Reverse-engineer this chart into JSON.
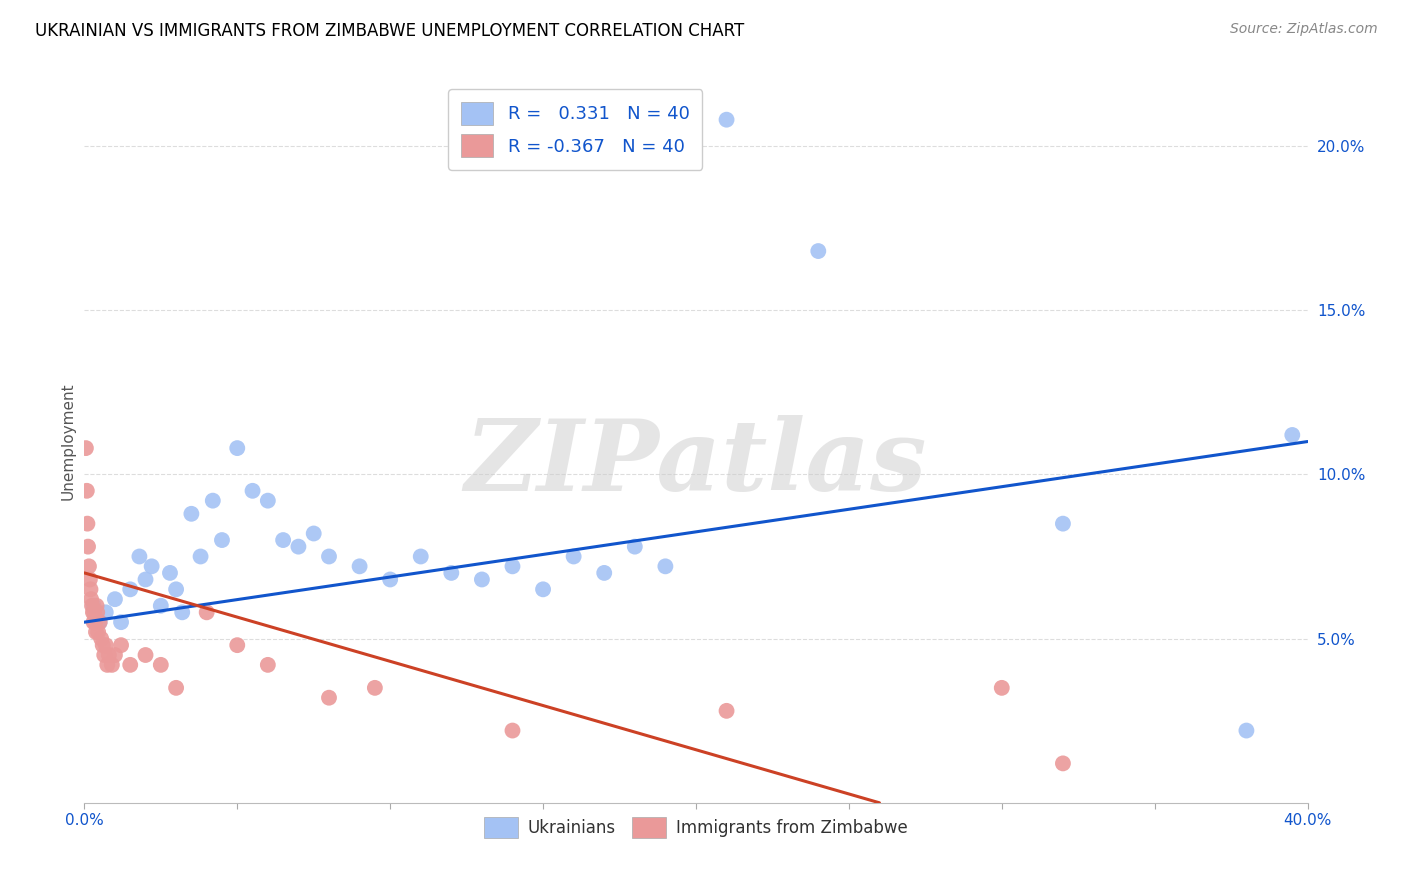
{
  "title": "UKRAINIAN VS IMMIGRANTS FROM ZIMBABWE UNEMPLOYMENT CORRELATION CHART",
  "source": "Source: ZipAtlas.com",
  "ylabel": "Unemployment",
  "legend_blue_r": "0.331",
  "legend_blue_n": "40",
  "legend_pink_r": "-0.367",
  "legend_pink_n": "40",
  "legend_blue_label": "Ukrainians",
  "legend_pink_label": "Immigrants from Zimbabwe",
  "watermark": "ZIPatlas",
  "blue_color": "#a4c2f4",
  "pink_color": "#ea9999",
  "blue_line_color": "#1155cc",
  "pink_line_color": "#cc4125",
  "blue_scatter": [
    [
      0.3,
      6.0
    ],
    [
      0.5,
      5.5
    ],
    [
      0.7,
      5.8
    ],
    [
      1.0,
      6.2
    ],
    [
      1.2,
      5.5
    ],
    [
      1.5,
      6.5
    ],
    [
      1.8,
      7.5
    ],
    [
      2.0,
      6.8
    ],
    [
      2.2,
      7.2
    ],
    [
      2.5,
      6.0
    ],
    [
      2.8,
      7.0
    ],
    [
      3.0,
      6.5
    ],
    [
      3.2,
      5.8
    ],
    [
      3.5,
      8.8
    ],
    [
      3.8,
      7.5
    ],
    [
      4.2,
      9.2
    ],
    [
      4.5,
      8.0
    ],
    [
      5.0,
      10.8
    ],
    [
      5.5,
      9.5
    ],
    [
      6.0,
      9.2
    ],
    [
      6.5,
      8.0
    ],
    [
      7.0,
      7.8
    ],
    [
      7.5,
      8.2
    ],
    [
      8.0,
      7.5
    ],
    [
      9.0,
      7.2
    ],
    [
      10.0,
      6.8
    ],
    [
      11.0,
      7.5
    ],
    [
      12.0,
      7.0
    ],
    [
      13.0,
      6.8
    ],
    [
      14.0,
      7.2
    ],
    [
      15.0,
      6.5
    ],
    [
      16.0,
      7.5
    ],
    [
      17.0,
      7.0
    ],
    [
      18.0,
      7.8
    ],
    [
      19.0,
      7.2
    ],
    [
      21.0,
      20.8
    ],
    [
      24.0,
      16.8
    ],
    [
      32.0,
      8.5
    ],
    [
      38.0,
      2.2
    ],
    [
      39.5,
      11.2
    ]
  ],
  "pink_scatter": [
    [
      0.05,
      10.8
    ],
    [
      0.08,
      9.5
    ],
    [
      0.1,
      8.5
    ],
    [
      0.12,
      7.8
    ],
    [
      0.15,
      7.2
    ],
    [
      0.18,
      6.8
    ],
    [
      0.2,
      6.5
    ],
    [
      0.22,
      6.2
    ],
    [
      0.25,
      6.0
    ],
    [
      0.28,
      5.8
    ],
    [
      0.3,
      5.5
    ],
    [
      0.32,
      5.8
    ],
    [
      0.35,
      5.5
    ],
    [
      0.38,
      5.2
    ],
    [
      0.4,
      6.0
    ],
    [
      0.42,
      5.8
    ],
    [
      0.45,
      5.2
    ],
    [
      0.5,
      5.5
    ],
    [
      0.55,
      5.0
    ],
    [
      0.6,
      4.8
    ],
    [
      0.65,
      4.5
    ],
    [
      0.7,
      4.8
    ],
    [
      0.75,
      4.2
    ],
    [
      0.8,
      4.5
    ],
    [
      0.9,
      4.2
    ],
    [
      1.0,
      4.5
    ],
    [
      1.2,
      4.8
    ],
    [
      1.5,
      4.2
    ],
    [
      2.0,
      4.5
    ],
    [
      2.5,
      4.2
    ],
    [
      3.0,
      3.5
    ],
    [
      4.0,
      5.8
    ],
    [
      5.0,
      4.8
    ],
    [
      6.0,
      4.2
    ],
    [
      8.0,
      3.2
    ],
    [
      9.5,
      3.5
    ],
    [
      14.0,
      2.2
    ],
    [
      21.0,
      2.8
    ],
    [
      30.0,
      3.5
    ],
    [
      32.0,
      1.2
    ]
  ],
  "xlim": [
    0,
    40
  ],
  "ylim": [
    0,
    22
  ],
  "blue_trendline": [
    [
      0,
      5.5
    ],
    [
      40,
      11.0
    ]
  ],
  "pink_trendline": [
    [
      0,
      7.0
    ],
    [
      26.0,
      0.0
    ]
  ],
  "xtick_vals": [
    0,
    5,
    10,
    15,
    20,
    25,
    30,
    35,
    40
  ],
  "ytick_vals": [
    5,
    10,
    15,
    20
  ],
  "grid_color": "#dddddd",
  "title_color": "#000000",
  "tick_label_color": "#1155cc",
  "ylabel_color": "#555555",
  "title_fontsize": 12,
  "source_fontsize": 10,
  "tick_fontsize": 11,
  "ylabel_fontsize": 11
}
